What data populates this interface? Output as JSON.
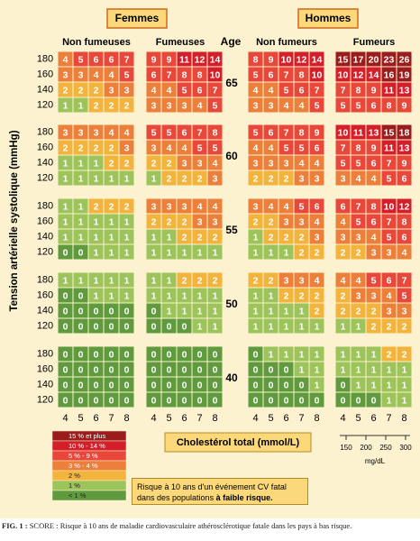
{
  "headers": {
    "women": "Femmes",
    "men": "Hommes"
  },
  "columns": [
    "Non fumeuses",
    "Fumeuses",
    "Non fumeurs",
    "Fumeurs"
  ],
  "age_label": "Age",
  "y_axis_title": "Tension artérielle systolique (mmHg)",
  "sbp_labels": [
    180,
    160,
    140,
    120
  ],
  "blocks": [
    {
      "age": 65,
      "panels": [
        [
          [
            4,
            5,
            6,
            6,
            7
          ],
          [
            3,
            3,
            4,
            4,
            5
          ],
          [
            2,
            2,
            2,
            3,
            3
          ],
          [
            1,
            1,
            2,
            2,
            2
          ]
        ],
        [
          [
            9,
            9,
            11,
            12,
            14
          ],
          [
            6,
            7,
            8,
            8,
            10
          ],
          [
            4,
            4,
            5,
            6,
            7
          ],
          [
            3,
            3,
            3,
            4,
            5
          ]
        ],
        [
          [
            8,
            9,
            10,
            12,
            14
          ],
          [
            5,
            6,
            7,
            8,
            10
          ],
          [
            4,
            4,
            5,
            6,
            7
          ],
          [
            3,
            3,
            4,
            4,
            5
          ]
        ],
        [
          [
            15,
            17,
            20,
            23,
            26
          ],
          [
            10,
            12,
            14,
            16,
            19
          ],
          [
            7,
            8,
            9,
            11,
            13
          ],
          [
            5,
            5,
            6,
            8,
            9
          ]
        ]
      ]
    },
    {
      "age": 60,
      "panels": [
        [
          [
            3,
            3,
            3,
            4,
            4
          ],
          [
            2,
            2,
            2,
            2,
            3
          ],
          [
            1,
            1,
            1,
            2,
            2
          ],
          [
            1,
            1,
            1,
            1,
            1
          ]
        ],
        [
          [
            5,
            5,
            6,
            7,
            8
          ],
          [
            3,
            4,
            4,
            5,
            5
          ],
          [
            2,
            2,
            3,
            3,
            4
          ],
          [
            1,
            2,
            2,
            2,
            3
          ]
        ],
        [
          [
            5,
            6,
            7,
            8,
            9
          ],
          [
            4,
            4,
            5,
            5,
            6
          ],
          [
            3,
            3,
            3,
            4,
            4
          ],
          [
            2,
            2,
            2,
            3,
            3
          ]
        ],
        [
          [
            10,
            11,
            13,
            15,
            18
          ],
          [
            7,
            8,
            9,
            11,
            13
          ],
          [
            5,
            5,
            6,
            7,
            9
          ],
          [
            3,
            4,
            4,
            5,
            6
          ]
        ]
      ]
    },
    {
      "age": 55,
      "panels": [
        [
          [
            1,
            1,
            2,
            2,
            2
          ],
          [
            1,
            1,
            1,
            1,
            1
          ],
          [
            1,
            1,
            1,
            1,
            1
          ],
          [
            0,
            0,
            1,
            1,
            1
          ]
        ],
        [
          [
            3,
            3,
            3,
            4,
            4
          ],
          [
            2,
            2,
            2,
            3,
            3
          ],
          [
            1,
            1,
            2,
            2,
            2
          ],
          [
            1,
            1,
            1,
            1,
            1
          ]
        ],
        [
          [
            3,
            4,
            4,
            5,
            6
          ],
          [
            2,
            2,
            3,
            3,
            4
          ],
          [
            1,
            2,
            2,
            2,
            3
          ],
          [
            1,
            1,
            1,
            2,
            2
          ]
        ],
        [
          [
            6,
            7,
            8,
            10,
            12
          ],
          [
            4,
            5,
            6,
            7,
            8
          ],
          [
            3,
            3,
            4,
            5,
            6
          ],
          [
            2,
            2,
            3,
            3,
            4
          ]
        ]
      ]
    },
    {
      "age": 50,
      "panels": [
        [
          [
            1,
            1,
            1,
            1,
            1
          ],
          [
            0,
            0,
            1,
            1,
            1
          ],
          [
            0,
            0,
            0,
            0,
            0
          ],
          [
            0,
            0,
            0,
            0,
            0
          ]
        ],
        [
          [
            1,
            1,
            2,
            2,
            2
          ],
          [
            1,
            1,
            1,
            1,
            1
          ],
          [
            0,
            1,
            1,
            1,
            1
          ],
          [
            0,
            0,
            0,
            1,
            1
          ]
        ],
        [
          [
            2,
            2,
            3,
            3,
            4
          ],
          [
            1,
            1,
            2,
            2,
            2
          ],
          [
            1,
            1,
            1,
            1,
            2
          ],
          [
            1,
            1,
            1,
            1,
            1
          ]
        ],
        [
          [
            4,
            4,
            5,
            6,
            7
          ],
          [
            2,
            3,
            3,
            4,
            5
          ],
          [
            2,
            2,
            2,
            3,
            3
          ],
          [
            1,
            1,
            2,
            2,
            2
          ]
        ]
      ]
    },
    {
      "age": 40,
      "panels": [
        [
          [
            0,
            0,
            0,
            0,
            0
          ],
          [
            0,
            0,
            0,
            0,
            0
          ],
          [
            0,
            0,
            0,
            0,
            0
          ],
          [
            0,
            0,
            0,
            0,
            0
          ]
        ],
        [
          [
            0,
            0,
            0,
            0,
            0
          ],
          [
            0,
            0,
            0,
            0,
            0
          ],
          [
            0,
            0,
            0,
            0,
            0
          ],
          [
            0,
            0,
            0,
            0,
            0
          ]
        ],
        [
          [
            0,
            1,
            1,
            1,
            1
          ],
          [
            0,
            0,
            0,
            1,
            1
          ],
          [
            0,
            0,
            0,
            0,
            1
          ],
          [
            0,
            0,
            0,
            0,
            0
          ]
        ],
        [
          [
            1,
            1,
            1,
            2,
            2
          ],
          [
            1,
            1,
            1,
            1,
            1
          ],
          [
            0,
            1,
            1,
            1,
            1
          ],
          [
            0,
            0,
            0,
            1,
            1
          ]
        ]
      ]
    }
  ],
  "chol_labels": [
    4,
    5,
    6,
    7,
    8
  ],
  "chol_title": "Cholestérol total (mmol/L)",
  "mgdl_labels": [
    150,
    200,
    250,
    300
  ],
  "mgdl_unit": "mg/dL",
  "legend": [
    {
      "label": "15 % et plus",
      "color": "#9b1c1c"
    },
    {
      "label": "10 % - 14 %",
      "color": "#d41f2b"
    },
    {
      "label": "5 % - 9 %",
      "color": "#e8473a"
    },
    {
      "label": "3 % - 4 %",
      "color": "#ec7f3a"
    },
    {
      "label": "2 %",
      "color": "#f2b43d"
    },
    {
      "label": "1 %",
      "color": "#9cc45a"
    },
    {
      "label": "< 1 %",
      "color": "#5f9b3d"
    }
  ],
  "note": {
    "text": "Risque à 10 ans d'un événement CV fatal dans des populations ",
    "bold": "à faible risque."
  },
  "caption": {
    "label": "FIG. 1 :",
    "text": "SCORE : Risque à 10 ans de maladie cardiovasculaire athérosclérotique fatale dans les pays à bas risque."
  }
}
